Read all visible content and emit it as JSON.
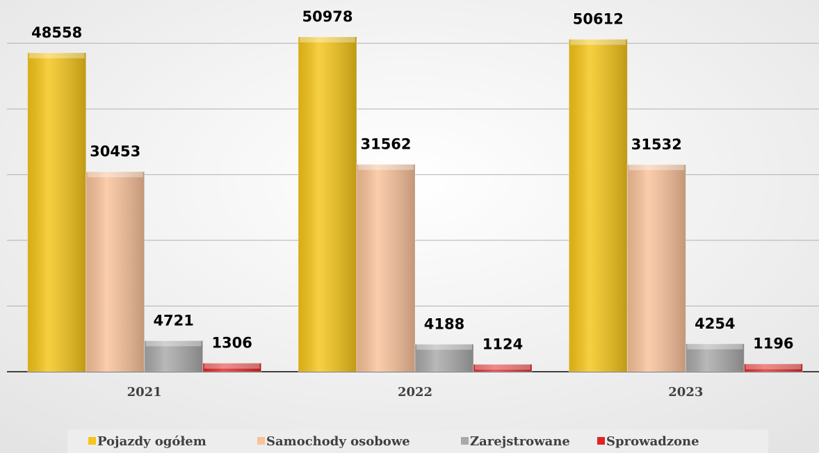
{
  "chart_data": {
    "type": "bar",
    "categories": [
      "2021",
      "2022",
      "2023"
    ],
    "series": [
      {
        "name": "Pojazdy ogółem",
        "color": "#f5c518",
        "values": [
          48558,
          50978,
          50612
        ]
      },
      {
        "name": "Samochody osobowe",
        "color": "#f9c29a",
        "values": [
          30453,
          31562,
          31532
        ]
      },
      {
        "name": "Zarejstrowane",
        "color": "#a9a9a9",
        "values": [
          4721,
          4188,
          4254
        ]
      },
      {
        "name": "Sprowadzone",
        "color": "#e02424",
        "values": [
          1306,
          1124,
          1196
        ]
      }
    ],
    "ylim": [
      0,
      55000
    ],
    "yticks": [
      0,
      10000,
      20000,
      30000,
      40000,
      50000
    ],
    "grid": true,
    "legend": "bottom"
  }
}
